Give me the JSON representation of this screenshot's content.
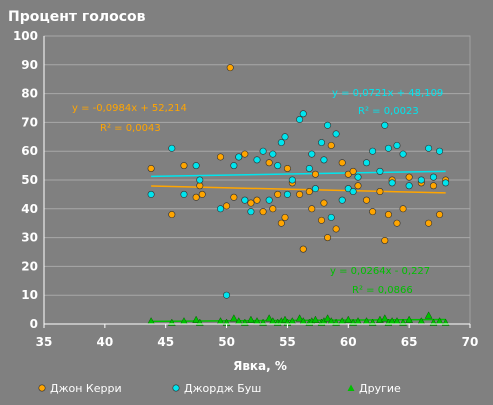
{
  "chart_data": {
    "type": "scatter",
    "title": "Процент голосов",
    "xlabel": "Явка, %",
    "ylabel": "",
    "xlim": [
      35,
      70
    ],
    "ylim": [
      0,
      100
    ],
    "xticks": [
      "35",
      "40",
      "45",
      "50",
      "55",
      "60",
      "65",
      "70"
    ],
    "yticks": [
      "0",
      "10",
      "20",
      "30",
      "40",
      "50",
      "60",
      "70",
      "80",
      "90",
      "100"
    ],
    "grid": true,
    "legend_position": "bottom",
    "series": [
      {
        "name": "Джон Керри",
        "color": "#ffa500",
        "points": [
          [
            43.8,
            54
          ],
          [
            45.5,
            38
          ],
          [
            46.5,
            55
          ],
          [
            47.5,
            44
          ],
          [
            47.8,
            48
          ],
          [
            48,
            45
          ],
          [
            49.5,
            58
          ],
          [
            50,
            41
          ],
          [
            50.3,
            89
          ],
          [
            50.6,
            44
          ],
          [
            51,
            58
          ],
          [
            51.5,
            59
          ],
          [
            52,
            42
          ],
          [
            52.5,
            43
          ],
          [
            53,
            39
          ],
          [
            53.5,
            56
          ],
          [
            53.8,
            40
          ],
          [
            54.2,
            45
          ],
          [
            54.5,
            35
          ],
          [
            54.8,
            37
          ],
          [
            55,
            54
          ],
          [
            55.4,
            49
          ],
          [
            56,
            45
          ],
          [
            56.3,
            26
          ],
          [
            56.8,
            46
          ],
          [
            57,
            40
          ],
          [
            57.3,
            52
          ],
          [
            57.8,
            36
          ],
          [
            58,
            42
          ],
          [
            58.3,
            30
          ],
          [
            58.6,
            62
          ],
          [
            59,
            33
          ],
          [
            59.5,
            56
          ],
          [
            60,
            52
          ],
          [
            60.4,
            53
          ],
          [
            60.8,
            48
          ],
          [
            61.5,
            43
          ],
          [
            62,
            39
          ],
          [
            62.6,
            46
          ],
          [
            63,
            29
          ],
          [
            63.3,
            38
          ],
          [
            63.6,
            50
          ],
          [
            64,
            35
          ],
          [
            64.5,
            40
          ],
          [
            65,
            51
          ],
          [
            66,
            49
          ],
          [
            66.6,
            35
          ],
          [
            67,
            48
          ],
          [
            67.5,
            38
          ],
          [
            68,
            50
          ]
        ]
      },
      {
        "name": "Джордж Буш",
        "color": "#00e5ee",
        "points": [
          [
            43.8,
            45
          ],
          [
            45.5,
            61
          ],
          [
            46.5,
            45
          ],
          [
            47.5,
            55
          ],
          [
            47.8,
            50
          ],
          [
            49.5,
            40
          ],
          [
            50,
            10
          ],
          [
            50.6,
            55
          ],
          [
            51,
            58
          ],
          [
            51.5,
            43
          ],
          [
            52,
            39
          ],
          [
            52.5,
            57
          ],
          [
            53,
            60
          ],
          [
            53.5,
            43
          ],
          [
            53.8,
            59
          ],
          [
            54.2,
            55
          ],
          [
            54.5,
            63
          ],
          [
            54.8,
            65
          ],
          [
            55,
            45
          ],
          [
            55.4,
            50
          ],
          [
            56,
            71
          ],
          [
            56.3,
            73
          ],
          [
            56.8,
            54
          ],
          [
            57,
            59
          ],
          [
            57.3,
            47
          ],
          [
            57.8,
            63
          ],
          [
            58,
            57
          ],
          [
            58.3,
            69
          ],
          [
            58.6,
            37
          ],
          [
            59,
            66
          ],
          [
            59.5,
            43
          ],
          [
            60,
            47
          ],
          [
            60.4,
            46
          ],
          [
            60.8,
            51
          ],
          [
            61.5,
            56
          ],
          [
            62,
            60
          ],
          [
            62.6,
            53
          ],
          [
            63,
            69
          ],
          [
            63.3,
            61
          ],
          [
            63.6,
            49
          ],
          [
            64,
            62
          ],
          [
            64.5,
            59
          ],
          [
            65,
            48
          ],
          [
            66,
            50
          ],
          [
            66.6,
            61
          ],
          [
            67,
            51
          ],
          [
            67.5,
            60
          ],
          [
            68,
            49
          ]
        ]
      },
      {
        "name": "Другие",
        "color": "#00c000",
        "points": [
          [
            43.8,
            1
          ],
          [
            45.5,
            0.5
          ],
          [
            46.5,
            1
          ],
          [
            47.5,
            1.5
          ],
          [
            47.8,
            0.5
          ],
          [
            49.5,
            1
          ],
          [
            50,
            0.5
          ],
          [
            50.6,
            2
          ],
          [
            51,
            1
          ],
          [
            51.5,
            0.5
          ],
          [
            52,
            1.5
          ],
          [
            52.5,
            1
          ],
          [
            53,
            0.5
          ],
          [
            53.5,
            2
          ],
          [
            53.8,
            1
          ],
          [
            54.2,
            0.5
          ],
          [
            54.5,
            1
          ],
          [
            54.8,
            1.5
          ],
          [
            55,
            0.5
          ],
          [
            55.4,
            1
          ],
          [
            56,
            2
          ],
          [
            56.3,
            1
          ],
          [
            56.8,
            0.5
          ],
          [
            57,
            1
          ],
          [
            57.3,
            1.5
          ],
          [
            57.8,
            0.5
          ],
          [
            58,
            1
          ],
          [
            58.3,
            2
          ],
          [
            58.6,
            1
          ],
          [
            59,
            0.5
          ],
          [
            59.5,
            1
          ],
          [
            60,
            1.5
          ],
          [
            60.4,
            0.5
          ],
          [
            60.8,
            1
          ],
          [
            61.5,
            1
          ],
          [
            62,
            0.5
          ],
          [
            62.6,
            1.5
          ],
          [
            63,
            2
          ],
          [
            63.3,
            0.5
          ],
          [
            63.6,
            1
          ],
          [
            64,
            1
          ],
          [
            64.5,
            0.5
          ],
          [
            65,
            1.5
          ],
          [
            66,
            1
          ],
          [
            66.6,
            3
          ],
          [
            67,
            0.5
          ],
          [
            67.5,
            1
          ],
          [
            68,
            0.5
          ]
        ]
      }
    ],
    "trendlines": [
      {
        "series": "Джон Керри",
        "color": "#ffa500",
        "slope": -0.0984,
        "intercept": 52.214,
        "x_range": [
          43.8,
          68
        ],
        "equation": "y = -0,0984x + 52,214",
        "r2": "R² = 0,0043"
      },
      {
        "series": "Джордж Буш",
        "color": "#00e5ee",
        "slope": 0.0721,
        "intercept": 48.109,
        "x_range": [
          43.8,
          68
        ],
        "equation": "y = 0,0721x + 48,109",
        "r2": "R² = 0,0023"
      },
      {
        "series": "Другие",
        "color": "#00c000",
        "slope": 0.0264,
        "intercept": -0.227,
        "x_range": [
          43.8,
          68
        ],
        "equation": "y = 0,0264x - 0,227",
        "r2": "R² = 0,0866"
      }
    ]
  }
}
